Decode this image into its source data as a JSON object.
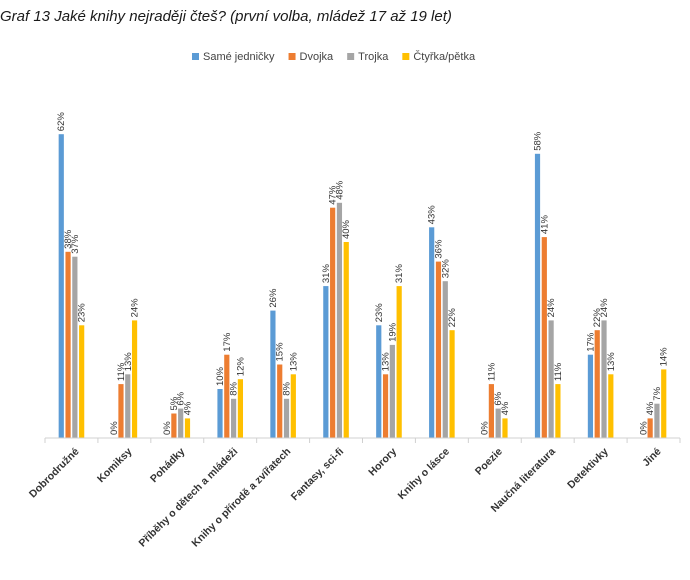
{
  "chart_data": {
    "type": "bar",
    "title": "Graf 13 Jaké knihy nejraději čteš? (první volba, mládež 17 až 19 let)",
    "xlabel": "",
    "ylabel": "",
    "ylim": [
      0,
      70
    ],
    "grid": false,
    "legend_position": "top",
    "categories": [
      "Dobrodružné",
      "Komiksy",
      "Pohádky",
      "Příběhy o dětech a mládeži",
      "Knihy o přírodě a zvířatech",
      "Fantasy,  sci-fi",
      "Horory",
      "Knihy o lásce",
      "Poezie",
      "Naučná literatura",
      "Detektivky",
      "Jiné"
    ],
    "series": [
      {
        "name": "Samé jedničky",
        "color": "#5B9BD5",
        "values": [
          62,
          0,
          0,
          10,
          26,
          31,
          23,
          43,
          0,
          58,
          17,
          0
        ]
      },
      {
        "name": "Dvojka",
        "color": "#ED7D31",
        "values": [
          38,
          11,
          5,
          17,
          15,
          47,
          13,
          36,
          11,
          41,
          22,
          4
        ]
      },
      {
        "name": "Trojka",
        "color": "#A5A5A5",
        "values": [
          37,
          13,
          6,
          8,
          8,
          48,
          19,
          32,
          6,
          24,
          24,
          7
        ]
      },
      {
        "name": "Čtyřka/pětka",
        "color": "#FFC000",
        "values": [
          23,
          24,
          4,
          12,
          13,
          40,
          31,
          22,
          4,
          11,
          13,
          14
        ]
      }
    ]
  }
}
